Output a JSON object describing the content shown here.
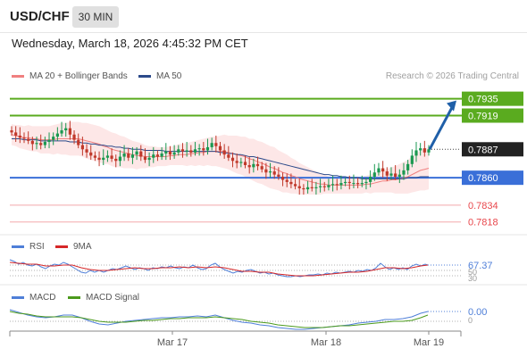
{
  "header": {
    "pair": "USD/CHF",
    "timeframe": "30 MIN",
    "datetime": "Wednesday, March 18, 2026 4:45:32 PM CET"
  },
  "legend": {
    "ma20_label": "MA 20 + Bollinger Bands",
    "ma20_color": "#f08080",
    "ma50_label": "MA 50",
    "ma50_color": "#2c4a8a",
    "credit": "Research © 2026 Trading Central"
  },
  "levels": [
    {
      "value": 0.7935,
      "label": "0.7935",
      "color": "#5aab1f",
      "style": "box"
    },
    {
      "value": 0.7919,
      "label": "0.7919",
      "color": "#5aab1f",
      "style": "box"
    },
    {
      "value": 0.7887,
      "label": "0.7887",
      "color": "#222222",
      "style": "box"
    },
    {
      "value": 0.786,
      "label": "0.7860",
      "color": "#3a6fd8",
      "style": "box"
    },
    {
      "value": 0.7834,
      "label": "0.7834",
      "color": "#e8474c",
      "style": "text"
    },
    {
      "value": 0.7818,
      "label": "0.7818",
      "color": "#e8474c",
      "style": "text"
    }
  ],
  "rsi": {
    "label": "RSI",
    "ma_label": "9MA",
    "value": "67.37",
    "levels": [
      "50",
      "30"
    ]
  },
  "macd": {
    "label": "MACD",
    "signal_label": "MACD Signal",
    "value": "0.00",
    "zero": "0"
  },
  "x_axis": {
    "ticks": [
      "Mar 17",
      "Mar 18",
      "Mar 19"
    ]
  },
  "chart_data": {
    "type": "candlestick",
    "ylim": [
      0.7811,
      0.7944
    ],
    "close": [
      0.7903,
      0.79,
      0.7898,
      0.7897,
      0.7895,
      0.7892,
      0.7893,
      0.7891,
      0.7894,
      0.7896,
      0.7899,
      0.7902,
      0.7905,
      0.7907,
      0.7901,
      0.7896,
      0.7891,
      0.7887,
      0.7884,
      0.7881,
      0.7879,
      0.7877,
      0.7879,
      0.7881,
      0.7878,
      0.7876,
      0.788,
      0.7883,
      0.7879,
      0.7882,
      0.7885,
      0.788,
      0.7877,
      0.7879,
      0.7882,
      0.788,
      0.7883,
      0.7885,
      0.7882,
      0.7884,
      0.7887,
      0.7885,
      0.7886,
      0.7884,
      0.7887,
      0.7888,
      0.7886,
      0.7889,
      0.7893,
      0.789,
      0.7886,
      0.7882,
      0.7879,
      0.7876,
      0.7874,
      0.7875,
      0.7872,
      0.787,
      0.7873,
      0.7871,
      0.7868,
      0.7865,
      0.7866,
      0.7863,
      0.7861,
      0.7858,
      0.7856,
      0.7854,
      0.7852,
      0.785,
      0.7849,
      0.7851,
      0.785,
      0.7851,
      0.7852,
      0.7851,
      0.7853,
      0.7854,
      0.7853,
      0.7855,
      0.7856,
      0.7855,
      0.7855,
      0.7854,
      0.7855,
      0.7856,
      0.7861,
      0.7865,
      0.7869,
      0.7866,
      0.7862,
      0.7864,
      0.7861,
      0.7863,
      0.7867,
      0.7873,
      0.7881,
      0.7886,
      0.7888,
      0.7884,
      0.7887
    ],
    "ma20": [
      0.7901,
      0.79,
      0.7899,
      0.7898,
      0.7898,
      0.7897,
      0.7897,
      0.7896,
      0.7896,
      0.7896,
      0.7896,
      0.7897,
      0.7897,
      0.7897,
      0.7897,
      0.7897,
      0.7897,
      0.7896,
      0.7895,
      0.7894,
      0.7893,
      0.7892,
      0.789,
      0.7889,
      0.7887,
      0.7886,
      0.7885,
      0.7884,
      0.7883,
      0.7882,
      0.7881,
      0.7881,
      0.788,
      0.788,
      0.788,
      0.788,
      0.788,
      0.788,
      0.7881,
      0.7881,
      0.7882,
      0.7882,
      0.7882,
      0.7883,
      0.7883,
      0.7884,
      0.7884,
      0.7885,
      0.7885,
      0.7885,
      0.7885,
      0.7885,
      0.7884,
      0.7883,
      0.7882,
      0.7881,
      0.788,
      0.7878,
      0.7877,
      0.7875,
      0.7874,
      0.7872,
      0.787,
      0.7869,
      0.7867,
      0.7865,
      0.7864,
      0.7862,
      0.7861,
      0.7859,
      0.7858,
      0.7857,
      0.7856,
      0.7855,
      0.7854,
      0.7854,
      0.7853,
      0.7853,
      0.7853,
      0.7853,
      0.7853,
      0.7853,
      0.7853,
      0.7853,
      0.7853,
      0.7854,
      0.7854,
      0.7855,
      0.7856,
      0.7857,
      0.7857,
      0.7858,
      0.7858,
      0.7859,
      0.786,
      0.7861,
      0.7863,
      0.7865,
      0.7867,
      0.7868,
      0.7869
    ],
    "ma50": [
      0.7897,
      0.7897,
      0.7897,
      0.7896,
      0.7896,
      0.7896,
      0.7896,
      0.7895,
      0.7895,
      0.7895,
      0.7895,
      0.7895,
      0.7895,
      0.7895,
      0.7894,
      0.7894,
      0.7894,
      0.7893,
      0.7893,
      0.7892,
      0.7892,
      0.7891,
      0.7891,
      0.789,
      0.789,
      0.7889,
      0.7889,
      0.7888,
      0.7888,
      0.7887,
      0.7887,
      0.7887,
      0.7886,
      0.7886,
      0.7886,
      0.7886,
      0.7886,
      0.7885,
      0.7885,
      0.7885,
      0.7885,
      0.7885,
      0.7885,
      0.7885,
      0.7885,
      0.7885,
      0.7885,
      0.7885,
      0.7885,
      0.7885,
      0.7884,
      0.7884,
      0.7883,
      0.7883,
      0.7882,
      0.7882,
      0.7881,
      0.788,
      0.788,
      0.7879,
      0.7878,
      0.7877,
      0.7876,
      0.7875,
      0.7874,
      0.7873,
      0.7872,
      0.7871,
      0.787,
      0.7869,
      0.7868,
      0.7867,
      0.7866,
      0.7865,
      0.7864,
      0.7863,
      0.7863,
      0.7862,
      0.7862,
      0.7861,
      0.7861,
      0.786,
      0.786,
      0.786,
      0.7859,
      0.7859,
      0.7859,
      0.7859,
      0.7859,
      0.7859,
      0.7859,
      0.7859,
      0.7859,
      0.7859,
      0.7859,
      0.786,
      0.786,
      0.786,
      0.7861,
      0.7861,
      0.7861
    ],
    "band_width": [
      0.001,
      0.001,
      0.0011,
      0.0011,
      0.0012,
      0.0012,
      0.0012,
      0.0013,
      0.0013,
      0.0013,
      0.0014,
      0.0014,
      0.0015,
      0.0015,
      0.0016,
      0.0016,
      0.0016,
      0.0016,
      0.0017,
      0.0017,
      0.0017,
      0.0017,
      0.0017,
      0.0016,
      0.0016,
      0.0016,
      0.0015,
      0.0015,
      0.0014,
      0.0013,
      0.0013,
      0.0012,
      0.0011,
      0.001,
      0.001,
      0.0009,
      0.0009,
      0.0009,
      0.0009,
      0.0009,
      0.001,
      0.001,
      0.0011,
      0.0011,
      0.0012,
      0.0012,
      0.0013,
      0.0013,
      0.0014,
      0.0014,
      0.0015,
      0.0016,
      0.0016,
      0.0017,
      0.0018,
      0.0018,
      0.0019,
      0.0019,
      0.002,
      0.002,
      0.002,
      0.002,
      0.002,
      0.002,
      0.0019,
      0.0019,
      0.0018,
      0.0017,
      0.0016,
      0.0015,
      0.0014,
      0.0013,
      0.0012,
      0.0011,
      0.001,
      0.0009,
      0.0008,
      0.0008,
      0.0008,
      0.0008,
      0.0008,
      0.0008,
      0.0008,
      0.0008,
      0.0008,
      0.0008,
      0.0009,
      0.0009,
      0.001,
      0.0011,
      0.0011,
      0.0012,
      0.0013,
      0.0014,
      0.0015,
      0.0016,
      0.0017,
      0.0018,
      0.0019,
      0.002,
      0.002
    ],
    "projection": {
      "from": 0.7887,
      "to": 0.7935
    }
  }
}
